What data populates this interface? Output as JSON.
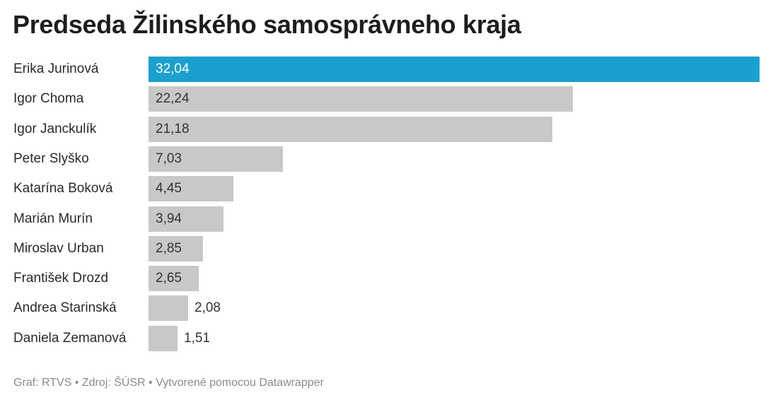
{
  "title": "Predseda Žilinského samosprávneho kraja",
  "footer": "Graf: RTVS • Zdroj: ŠÚSR • Vytvorené pomocou Datawrapper",
  "colors": {
    "highlight": "#1aa0cf",
    "bar": "#c8c8c8"
  },
  "chart_data": {
    "type": "bar",
    "orientation": "horizontal",
    "title": "Predseda Žilinského samosprávneho kraja",
    "categories": [
      "Erika Jurinová",
      "Igor Choma",
      "Igor Janckulík",
      "Peter Slyško",
      "Katarína Boková",
      "Marián Murín",
      "Miroslav Urban",
      "František Drozd",
      "Andrea Starinská",
      "Daniela Zemanová"
    ],
    "values": [
      32.04,
      22.24,
      21.18,
      7.03,
      4.45,
      3.94,
      2.85,
      2.65,
      2.08,
      1.51
    ],
    "value_labels": [
      "32,04",
      "22,24",
      "21,18",
      "7,03",
      "4,45",
      "3,94",
      "2,85",
      "2,65",
      "2,08",
      "1,51"
    ],
    "highlighted_category": "Erika Jurinová",
    "xlim": [
      0,
      32.04
    ],
    "grid": false,
    "legend": "none"
  }
}
